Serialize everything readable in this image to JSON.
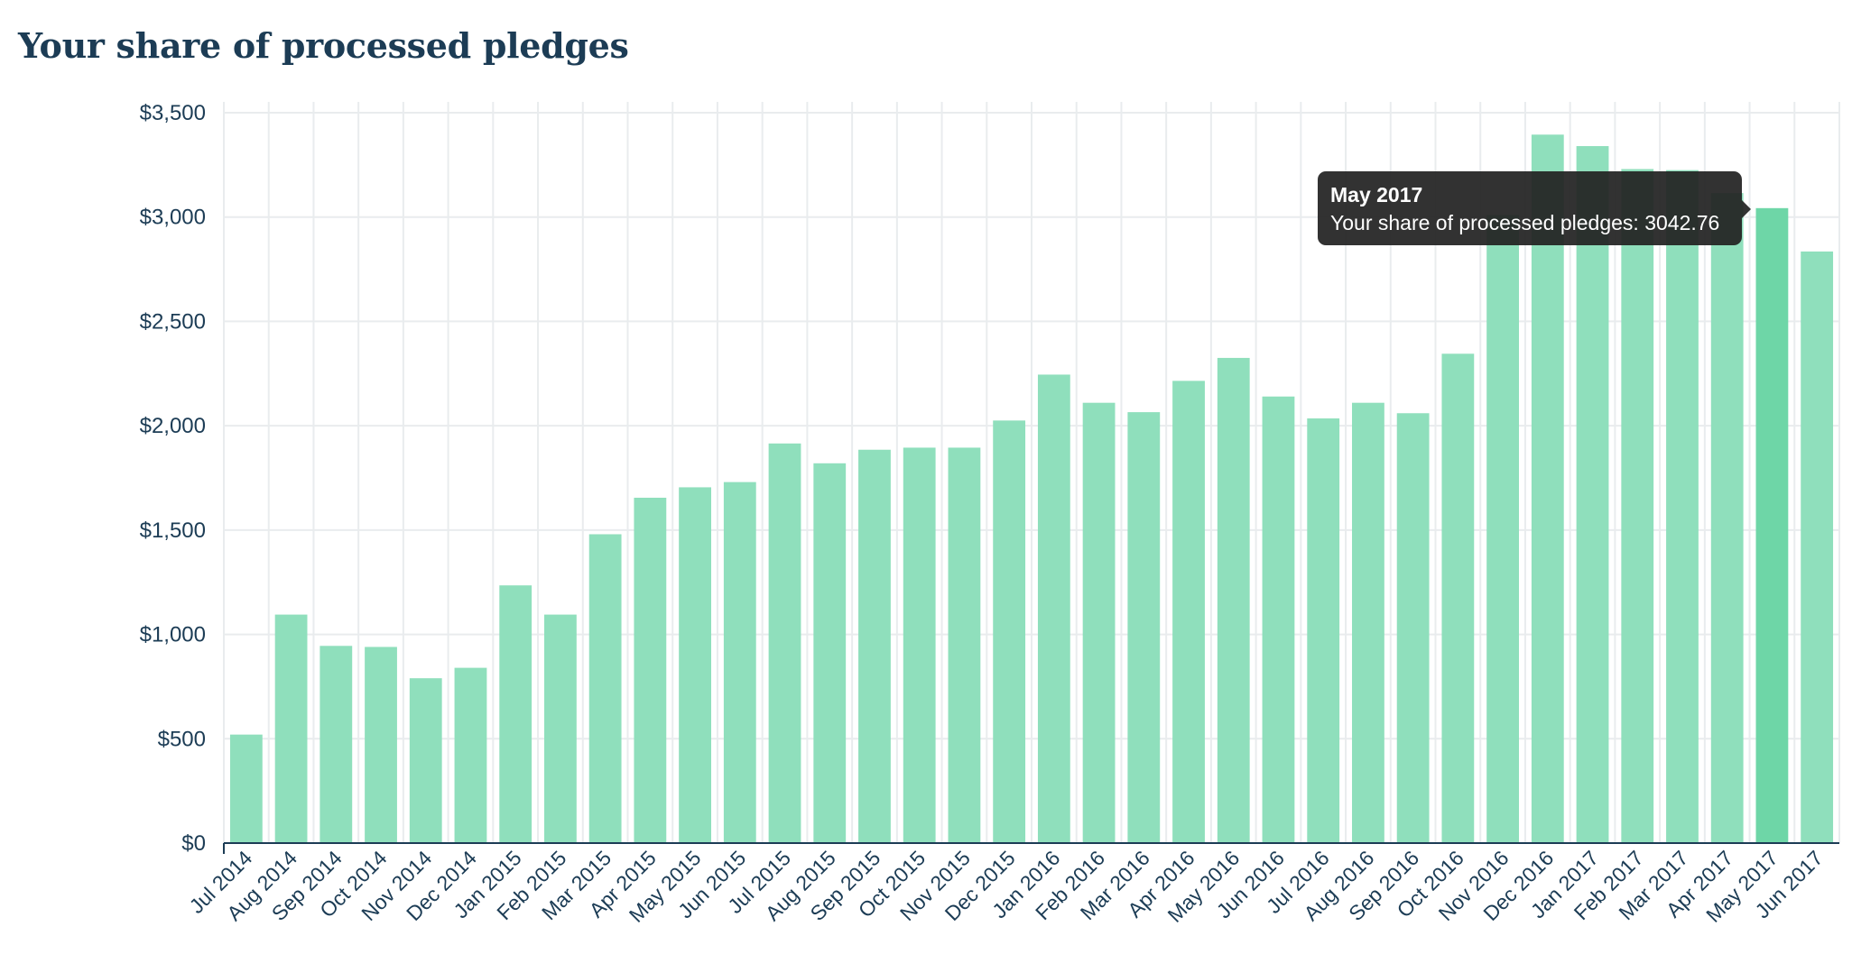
{
  "chart_data": {
    "type": "bar",
    "title": "Your share of processed pledges",
    "xlabel": "",
    "ylabel": "",
    "ylim": [
      0,
      3500
    ],
    "yticks": [
      0,
      500,
      1000,
      1500,
      2000,
      2500,
      3000,
      3500
    ],
    "ytick_labels": [
      "$0",
      "$500",
      "$1,000",
      "$1,500",
      "$2,000",
      "$2,500",
      "$3,000",
      "$3,500"
    ],
    "categories": [
      "Jul 2014",
      "Aug 2014",
      "Sep 2014",
      "Oct 2014",
      "Nov 2014",
      "Dec 2014",
      "Jan 2015",
      "Feb 2015",
      "Mar 2015",
      "Apr 2015",
      "May 2015",
      "Jun 2015",
      "Jul 2015",
      "Aug 2015",
      "Sep 2015",
      "Oct 2015",
      "Nov 2015",
      "Dec 2015",
      "Jan 2016",
      "Feb 2016",
      "Mar 2016",
      "Apr 2016",
      "May 2016",
      "Jun 2016",
      "Jul 2016",
      "Aug 2016",
      "Sep 2016",
      "Oct 2016",
      "Nov 2016",
      "Dec 2016",
      "Jan 2017",
      "Feb 2017",
      "Mar 2017",
      "Apr 2017",
      "May 2017",
      "Jun 2017"
    ],
    "values": [
      520,
      1095,
      945,
      940,
      790,
      840,
      1235,
      1095,
      1480,
      1655,
      1705,
      1730,
      1915,
      1820,
      1885,
      1895,
      1895,
      2025,
      2245,
      2110,
      2065,
      2215,
      2325,
      2140,
      2035,
      2110,
      2060,
      2345,
      3010,
      3395,
      3340,
      3230,
      3225,
      3115,
      3042.76,
      2835
    ],
    "highlighted_category": "May 2017",
    "grid": true,
    "colors": {
      "bar": "#8fdfbc",
      "bar_highlight": "#6ed6a7",
      "grid": "#e9ecee",
      "axis": "#1c3c55",
      "label": "#1c3c55"
    }
  },
  "tooltip": {
    "title": "May 2017",
    "label": "Your share of processed pledges: 3042.76"
  }
}
